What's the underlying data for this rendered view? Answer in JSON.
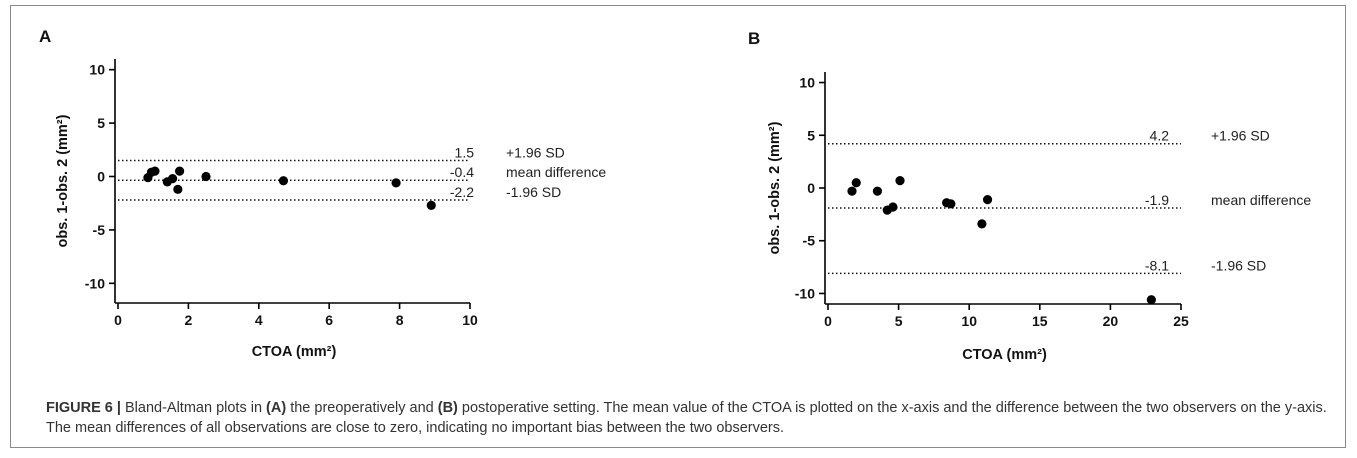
{
  "chart_data": [
    {
      "type": "scatter",
      "panel_label": "A",
      "xlabel": "CTOA (mm²)",
      "ylabel": "obs. 1-obs. 2  (mm²)",
      "xlim": [
        0,
        10
      ],
      "ylim": [
        -11,
        11
      ],
      "xticks": [
        0,
        2,
        4,
        6,
        8,
        10
      ],
      "yticks": [
        10,
        5,
        0,
        -5,
        -10
      ],
      "points": [
        {
          "x": 0.85,
          "y": -0.1
        },
        {
          "x": 0.95,
          "y": 0.4
        },
        {
          "x": 1.05,
          "y": 0.5
        },
        {
          "x": 1.4,
          "y": -0.5
        },
        {
          "x": 1.55,
          "y": -0.2
        },
        {
          "x": 1.7,
          "y": -1.2
        },
        {
          "x": 1.75,
          "y": 0.5
        },
        {
          "x": 2.5,
          "y": 0.0
        },
        {
          "x": 4.7,
          "y": -0.4
        },
        {
          "x": 7.9,
          "y": -0.6
        },
        {
          "x": 8.9,
          "y": -2.7
        }
      ],
      "reference_lines": [
        {
          "y": 1.5,
          "value_label": "1.5",
          "name": "+1.96 SD"
        },
        {
          "y": -0.35,
          "value_label": "-0.4",
          "name": "mean difference"
        },
        {
          "y": -2.2,
          "value_label": "-2.2",
          "name": "-1.96 SD"
        }
      ]
    },
    {
      "type": "scatter",
      "panel_label": "B",
      "xlabel": "CTOA (mm²)",
      "ylabel": "obs. 1-obs. 2  (mm²)",
      "xlim": [
        0,
        25
      ],
      "ylim": [
        -11,
        11
      ],
      "xticks": [
        0,
        5,
        10,
        15,
        20,
        25
      ],
      "yticks": [
        10,
        5,
        0,
        -5,
        -10
      ],
      "points": [
        {
          "x": 1.7,
          "y": -0.3
        },
        {
          "x": 2.0,
          "y": 0.5
        },
        {
          "x": 3.5,
          "y": -0.3
        },
        {
          "x": 4.2,
          "y": -2.1
        },
        {
          "x": 4.6,
          "y": -1.8
        },
        {
          "x": 5.1,
          "y": 0.7
        },
        {
          "x": 8.4,
          "y": -1.4
        },
        {
          "x": 8.7,
          "y": -1.5
        },
        {
          "x": 10.9,
          "y": -3.4
        },
        {
          "x": 11.3,
          "y": -1.1
        },
        {
          "x": 22.9,
          "y": -10.6
        }
      ],
      "reference_lines": [
        {
          "y": 4.2,
          "value_label": "4.2",
          "name": "+1.96 SD"
        },
        {
          "y": -1.9,
          "value_label": "-1.9",
          "name": "mean difference"
        },
        {
          "y": -8.1,
          "value_label": "-8.1",
          "name": "-1.96 SD"
        }
      ]
    }
  ],
  "caption": {
    "label": "FIGURE 6 |",
    "t1": " Bland-Altman plots in ",
    "a": "(A)",
    "t2": " the preoperatively and ",
    "b": "(B)",
    "t3": " postoperative setting. The mean value of the CTOA is plotted on the x-axis and the difference between the two observers on the y-axis. The mean differences of all observations are close to zero, indicating no important bias between the two observers."
  }
}
